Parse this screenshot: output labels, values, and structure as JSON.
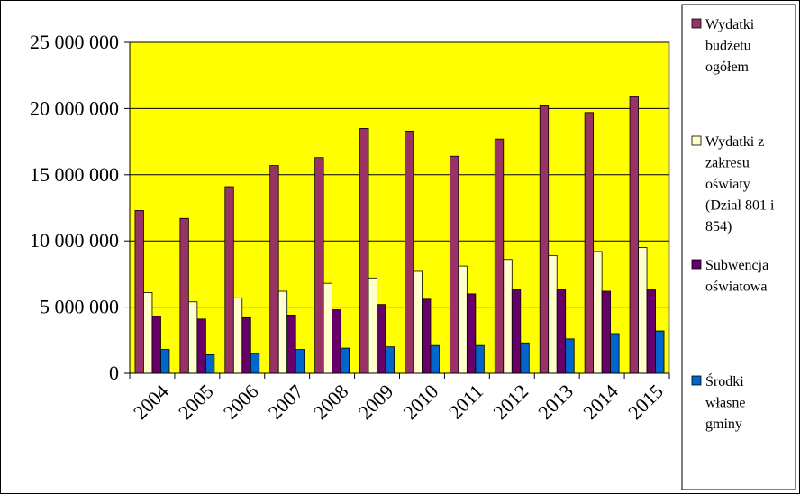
{
  "chart_data": {
    "type": "bar",
    "title": "",
    "xlabel": "",
    "ylabel": "",
    "categories": [
      "2004",
      "2005",
      "2006",
      "2007",
      "2008",
      "2009",
      "2010",
      "2011",
      "2012",
      "2013",
      "2014",
      "2015"
    ],
    "y_ticks": [
      "0",
      "5 000 000",
      "10 000 000",
      "15 000 000",
      "20 000 000",
      "25 000 000"
    ],
    "ylim": [
      0,
      25000000
    ],
    "grid": true,
    "legend_position": "right",
    "plot_background": "#FFFF00",
    "series": [
      {
        "name": "Wydatki budżetu ogółem",
        "legend_lines": [
          "Wydatki",
          "budżetu",
          "ogółem"
        ],
        "color": "#993366",
        "values": [
          12300000,
          11700000,
          14100000,
          15700000,
          16300000,
          18500000,
          18300000,
          16400000,
          17700000,
          20200000,
          19700000,
          20900000
        ]
      },
      {
        "name": "Wydatki z zakresu oświaty (Dział 801 i 854)",
        "legend_lines": [
          "Wydatki z",
          "zakresu",
          "oświaty",
          "(Dział 801 i",
          "854)"
        ],
        "color": "#FFFFCC",
        "values": [
          6100000,
          5400000,
          5700000,
          6200000,
          6800000,
          7200000,
          7700000,
          8100000,
          8600000,
          8900000,
          9200000,
          9500000
        ]
      },
      {
        "name": "Subwencja oświatowa",
        "legend_lines": [
          "Subwencja",
          "oświatowa"
        ],
        "color": "#660066",
        "values": [
          4300000,
          4100000,
          4200000,
          4400000,
          4800000,
          5200000,
          5600000,
          6000000,
          6300000,
          6300000,
          6200000,
          6300000
        ]
      },
      {
        "name": "Środki własne gminy",
        "legend_lines": [
          "Środki",
          "własne",
          "gminy"
        ],
        "color": "#0066CC",
        "values": [
          1800000,
          1400000,
          1500000,
          1800000,
          1900000,
          2000000,
          2100000,
          2100000,
          2300000,
          2600000,
          3000000,
          3200000
        ]
      }
    ]
  }
}
